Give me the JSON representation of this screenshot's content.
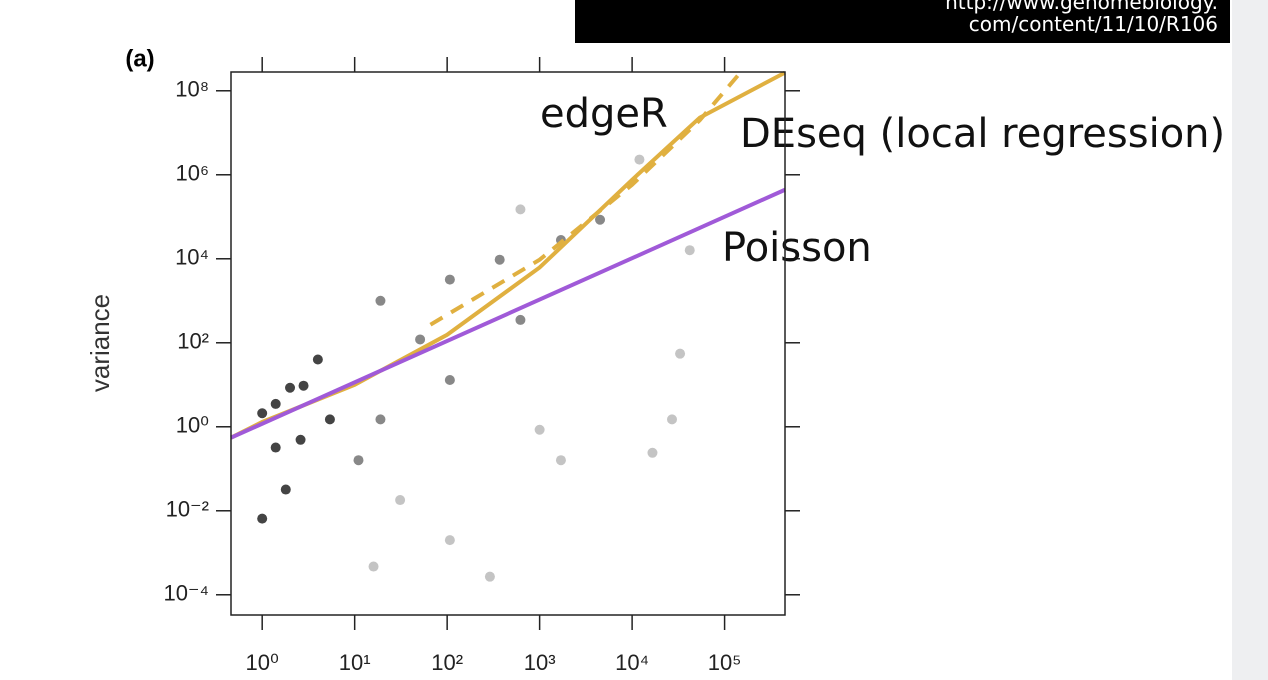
{
  "source": [
    "http://www.genomebiology.",
    "com/content/11/10/R106"
  ],
  "chart_data": {
    "type": "scatter",
    "panel_label": "(a)",
    "ylabel": "variance",
    "xscale": "log",
    "yscale": "log",
    "xlim": [
      0.46,
      450000
    ],
    "ylim": [
      3.3e-05,
      280000000
    ],
    "xticks": [
      {
        "value": 1,
        "label": "10⁰"
      },
      {
        "value": 10,
        "label": "10¹"
      },
      {
        "value": 100,
        "label": "10²"
      },
      {
        "value": 1000,
        "label": "10³"
      },
      {
        "value": 10000,
        "label": "10⁴"
      },
      {
        "value": 100000,
        "label": "10⁵"
      }
    ],
    "yticks": [
      {
        "value": 0.0001,
        "label": "10⁻⁴"
      },
      {
        "value": 0.01,
        "label": "10⁻²"
      },
      {
        "value": 1,
        "label": "10⁰"
      },
      {
        "value": 100,
        "label": "10²"
      },
      {
        "value": 10000,
        "label": "10⁴"
      },
      {
        "value": 1000000,
        "label": "10⁶"
      },
      {
        "value": 100000000,
        "label": "10⁸"
      }
    ],
    "series": [
      {
        "color": "#444444",
        "x": [
          1,
          1.4,
          2,
          2.8,
          4,
          1.4,
          1.8,
          1,
          2.6,
          5.4
        ],
        "values": [
          2.1,
          3.5,
          8.5,
          9.5,
          40,
          0.32,
          0.032,
          0.0065,
          0.49,
          1.5
        ]
      },
      {
        "color": "#888888",
        "x": [
          19,
          51,
          107,
          370,
          620,
          1700,
          4500,
          19,
          107,
          11
        ],
        "values": [
          1000,
          120,
          3200,
          9500,
          350,
          28000,
          85000,
          1.5,
          13,
          0.16
        ]
      },
      {
        "color": "#c4c4c4",
        "x": [
          31,
          107,
          290,
          16,
          1700,
          16600,
          27000,
          33000,
          42000,
          12000,
          620,
          1000
        ],
        "values": [
          0.018,
          0.002,
          0.00027,
          0.00047,
          0.16,
          0.24,
          1.5,
          55,
          16000,
          2300000,
          150000,
          0.85
        ]
      },
      {
        "name": "edgeR",
        "mode": "line",
        "dash": true,
        "color": "#e0b040",
        "x": [
          66,
          1000,
          10000,
          54000,
          150000
        ],
        "values": [
          270,
          9500,
          580000,
          20000000,
          280000000
        ]
      },
      {
        "name": "DEseq (local regression)",
        "mode": "line",
        "color": "#e0b040",
        "x": [
          0.46,
          1,
          10,
          100,
          1000,
          10000,
          54000,
          450000
        ],
        "values": [
          0.55,
          1.3,
          10,
          155,
          6200,
          760000,
          23000000,
          270000000
        ]
      },
      {
        "name": "Poisson",
        "mode": "line",
        "color": "#a05ad8",
        "x": [
          0.46,
          450000
        ],
        "values": [
          0.55,
          440000
        ]
      }
    ]
  }
}
